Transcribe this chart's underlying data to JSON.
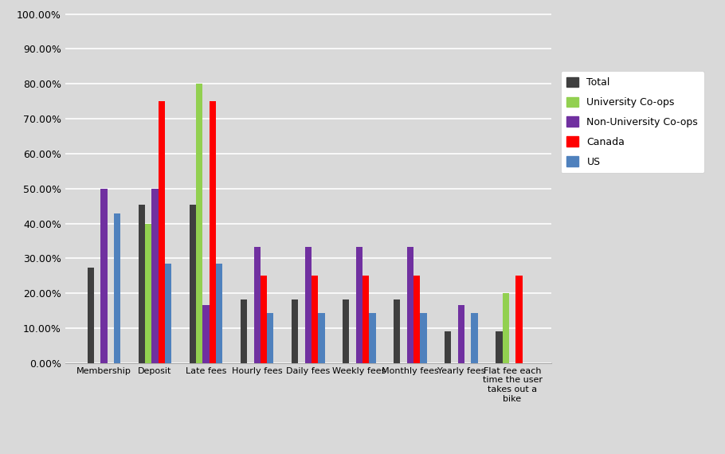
{
  "categories": [
    "Membership",
    "Deposit",
    "Late fees",
    "Hourly fees",
    "Daily fees",
    "Weekly fees",
    "Monthly fees",
    "Yearly fees",
    "Flat fee each\ntime the user\ntakes out a\nbike"
  ],
  "series": {
    "Total": [
      0.273,
      0.455,
      0.455,
      0.182,
      0.182,
      0.182,
      0.182,
      0.091,
      0.091
    ],
    "University Co-ops": [
      0.0,
      0.4,
      0.8,
      0.0,
      0.0,
      0.0,
      0.0,
      0.0,
      0.2
    ],
    "Non-University Co-ops": [
      0.5,
      0.5,
      0.167,
      0.333,
      0.333,
      0.333,
      0.333,
      0.167,
      0.0
    ],
    "Canada": [
      0.0,
      0.75,
      0.75,
      0.25,
      0.25,
      0.25,
      0.25,
      0.0,
      0.25
    ],
    "US": [
      0.429,
      0.286,
      0.286,
      0.143,
      0.143,
      0.143,
      0.143,
      0.143,
      0.0
    ]
  },
  "colors": {
    "Total": "#3F3F3F",
    "University Co-ops": "#92D050",
    "Non-University Co-ops": "#7030A0",
    "Canada": "#FF0000",
    "US": "#4F81BD"
  },
  "legend_order": [
    "Total",
    "University Co-ops",
    "Non-University Co-ops",
    "Canada",
    "US"
  ],
  "ylim": [
    0.0,
    1.001
  ],
  "yticks": [
    0.0,
    0.1,
    0.2,
    0.3,
    0.4,
    0.5,
    0.6,
    0.7,
    0.8,
    0.9,
    1.0
  ],
  "figure_facecolor": "#D9D9D9",
  "plot_facecolor": "#D9D9D9",
  "grid_color": "#FFFFFF",
  "bar_width": 0.13,
  "figsize": [
    9.1,
    5.7
  ],
  "dpi": 100
}
